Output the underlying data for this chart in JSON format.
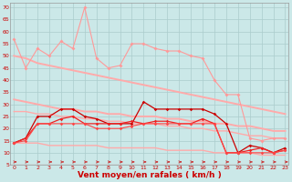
{
  "xlabel": "Vent moyen/en rafales ( km/h )",
  "background_color": "#cbe8e8",
  "grid_color": "#aacccc",
  "x": [
    0,
    1,
    2,
    3,
    4,
    5,
    6,
    7,
    8,
    9,
    10,
    11,
    12,
    13,
    14,
    15,
    16,
    17,
    18,
    19,
    20,
    21,
    22,
    23
  ],
  "ylim": [
    5,
    72
  ],
  "yticks": [
    5,
    10,
    15,
    20,
    25,
    30,
    35,
    40,
    45,
    50,
    55,
    60,
    65,
    70
  ],
  "series": [
    {
      "y": [
        57,
        45,
        53,
        50,
        56,
        53,
        70,
        49,
        45,
        46,
        55,
        55,
        53,
        52,
        52,
        50,
        49,
        40,
        34,
        34,
        16,
        15,
        16,
        16
      ],
      "color": "#ff9999",
      "marker": "D",
      "markersize": 2,
      "linewidth": 0.8,
      "zorder": 3
    },
    {
      "y": [
        50,
        49,
        47,
        46,
        45,
        44,
        43,
        42,
        41,
        40,
        39,
        38,
        37,
        36,
        35,
        34,
        33,
        32,
        31,
        30,
        29,
        28,
        27,
        26
      ],
      "color": "#ffaaaa",
      "marker": null,
      "markersize": 0,
      "linewidth": 1.4,
      "zorder": 2
    },
    {
      "y": [
        32,
        31,
        30,
        29,
        28,
        28,
        27,
        27,
        26,
        26,
        25,
        25,
        25,
        24,
        24,
        23,
        23,
        22,
        22,
        21,
        21,
        20,
        19,
        19
      ],
      "color": "#ffaaaa",
      "marker": null,
      "markersize": 0,
      "linewidth": 1.4,
      "zorder": 2
    },
    {
      "y": [
        27,
        27,
        26,
        26,
        25,
        25,
        24,
        24,
        23,
        23,
        22,
        22,
        22,
        21,
        21,
        20,
        20,
        19,
        19,
        18,
        17,
        17,
        16,
        16
      ],
      "color": "#ffaaaa",
      "marker": null,
      "markersize": 0,
      "linewidth": 1.0,
      "zorder": 2
    },
    {
      "y": [
        14,
        14,
        14,
        13,
        13,
        13,
        13,
        13,
        12,
        12,
        12,
        12,
        12,
        11,
        11,
        11,
        11,
        10,
        10,
        10,
        10,
        9,
        9,
        9
      ],
      "color": "#ffaaaa",
      "marker": null,
      "markersize": 0,
      "linewidth": 1.0,
      "zorder": 2
    },
    {
      "y": [
        14,
        16,
        25,
        25,
        28,
        28,
        25,
        24,
        22,
        22,
        22,
        31,
        28,
        28,
        28,
        28,
        28,
        26,
        22,
        10,
        13,
        12,
        10,
        12
      ],
      "color": "#cc0000",
      "marker": "D",
      "markersize": 1.8,
      "linewidth": 0.9,
      "zorder": 4
    },
    {
      "y": [
        14,
        16,
        22,
        22,
        24,
        25,
        22,
        22,
        22,
        22,
        23,
        22,
        23,
        23,
        22,
        22,
        24,
        22,
        10,
        10,
        11,
        12,
        10,
        11
      ],
      "color": "#ee2222",
      "marker": "D",
      "markersize": 1.8,
      "linewidth": 0.9,
      "zorder": 4
    },
    {
      "y": [
        14,
        15,
        22,
        22,
        22,
        22,
        22,
        20,
        20,
        20,
        21,
        22,
        22,
        22,
        22,
        22,
        22,
        22,
        10,
        10,
        10,
        10,
        10,
        11
      ],
      "color": "#ff4444",
      "marker": "D",
      "markersize": 1.8,
      "linewidth": 0.8,
      "zorder": 4
    }
  ],
  "wind_arrows_color": "#cc2222",
  "tick_label_color": "#cc0000",
  "tick_fontsize": 4.5,
  "xlabel_fontsize": 6.5,
  "xlabel_color": "#cc0000",
  "xlabel_fontweight": "bold"
}
